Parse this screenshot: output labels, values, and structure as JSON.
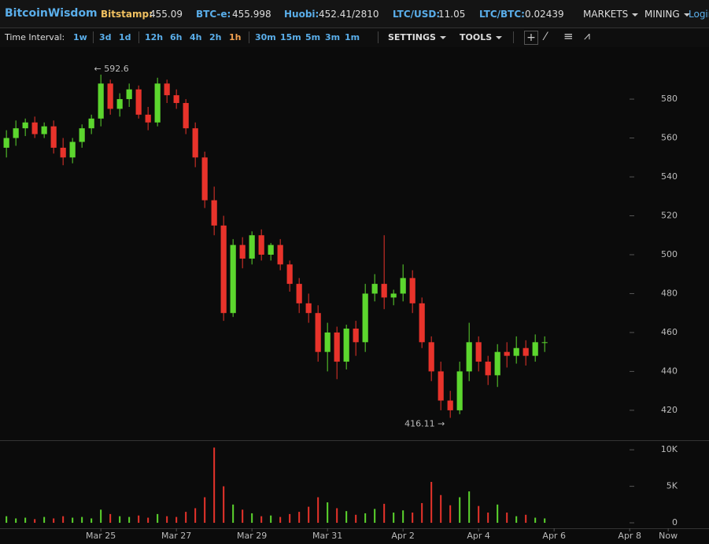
{
  "header": {
    "brand": "BitcoinWisdom",
    "tickers": [
      {
        "label": "Bitstamp:",
        "value": "455.09"
      },
      {
        "label": "BTC-e:",
        "value": "455.998"
      },
      {
        "label": "Huobi:",
        "value": "452.41/2810"
      },
      {
        "label": "LTC/USD:",
        "value": "11.05"
      },
      {
        "label": "LTC/BTC:",
        "value": "0.02439"
      }
    ],
    "menus": [
      "MARKETS",
      "MINING"
    ],
    "login": "Login"
  },
  "toolbar": {
    "label": "Time Interval:",
    "interval_groups": [
      [
        "1w"
      ],
      [
        "3d",
        "1d"
      ],
      [
        "12h",
        "6h",
        "4h",
        "2h",
        "1h"
      ],
      [
        "30m",
        "15m",
        "5m",
        "3m",
        "1m"
      ]
    ],
    "selected": [
      2,
      4
    ],
    "menus": [
      "SETTINGS",
      "TOOLS"
    ]
  },
  "chart_data": {
    "type": "candlestick",
    "up_color": "#5cd62e",
    "down_color": "#e8332b",
    "x": [
      22.5,
      22.75,
      23,
      23.25,
      23.5,
      23.75,
      24,
      24.25,
      24.5,
      24.75,
      25,
      25.25,
      25.5,
      25.75,
      26,
      26.25,
      26.5,
      26.75,
      27,
      27.25,
      27.5,
      27.75,
      28,
      28.25,
      28.5,
      28.75,
      29,
      29.25,
      29.5,
      29.75,
      30,
      30.25,
      30.5,
      30.75,
      31,
      31.25,
      31.5,
      31.75,
      32,
      32.25,
      32.5,
      32.75,
      33,
      33.25,
      33.5,
      33.75,
      34,
      34.25,
      34.5,
      34.75,
      35,
      35.25,
      35.5,
      35.75,
      36,
      36.25,
      36.5,
      36.75
    ],
    "open": [
      555,
      560,
      565,
      568,
      562,
      566,
      555,
      550,
      558,
      565,
      570,
      588,
      575,
      580,
      585,
      572,
      568,
      588,
      582,
      578,
      565,
      550,
      528,
      515,
      470,
      505,
      498,
      510,
      500,
      505,
      495,
      485,
      475,
      470,
      450,
      460,
      445,
      462,
      455,
      480,
      485,
      478,
      480,
      488,
      475,
      455,
      440,
      425,
      420,
      440,
      455,
      445,
      438,
      450,
      448,
      452,
      448,
      455
    ],
    "high": [
      564,
      569,
      570,
      571,
      568,
      569,
      560,
      560,
      567,
      572,
      592.6,
      590,
      583,
      588,
      587,
      576,
      591,
      590,
      585,
      580,
      568,
      553,
      535,
      520,
      508,
      509,
      512,
      513,
      506,
      508,
      497,
      488,
      480,
      474,
      465,
      463,
      464,
      466,
      485,
      490,
      510,
      482,
      495,
      492,
      478,
      458,
      445,
      430,
      445,
      465,
      458,
      448,
      454,
      455,
      458,
      456,
      459,
      458
    ],
    "low": [
      550,
      556,
      561,
      560,
      560,
      552,
      546,
      547,
      555,
      562,
      566,
      572,
      571,
      576,
      570,
      564,
      566,
      578,
      575,
      562,
      545,
      524,
      510,
      466,
      468,
      493,
      495,
      497,
      497,
      492,
      481,
      470,
      465,
      445,
      440,
      436,
      441,
      448,
      450,
      476,
      472,
      474,
      476,
      470,
      452,
      435,
      420,
      416.11,
      418,
      435,
      440,
      433,
      432,
      442,
      444,
      443,
      445,
      450
    ],
    "close": [
      560,
      565,
      568,
      562,
      566,
      555,
      550,
      558,
      565,
      570,
      588,
      575,
      580,
      585,
      572,
      568,
      588,
      582,
      578,
      565,
      550,
      528,
      515,
      470,
      505,
      498,
      510,
      500,
      505,
      495,
      485,
      475,
      470,
      450,
      460,
      445,
      462,
      455,
      480,
      485,
      478,
      480,
      488,
      475,
      455,
      440,
      425,
      420,
      440,
      455,
      445,
      438,
      450,
      448,
      452,
      448,
      455,
      455
    ],
    "volume": [
      900,
      600,
      700,
      500,
      800,
      600,
      900,
      700,
      800,
      600,
      1800,
      1200,
      900,
      800,
      1000,
      700,
      1200,
      900,
      800,
      1500,
      2000,
      3500,
      10300,
      5000,
      2500,
      1800,
      1300,
      900,
      1000,
      800,
      1200,
      1500,
      2200,
      3500,
      2800,
      2000,
      1600,
      1100,
      1300,
      1900,
      2600,
      1400,
      1700,
      1400,
      2700,
      5600,
      3800,
      2400,
      3500,
      4300,
      2300,
      1400,
      2500,
      1400,
      900,
      1100,
      700,
      600
    ],
    "ylim": [
      404.6,
      605.9
    ],
    "yticks": [
      420,
      440,
      460,
      480,
      500,
      520,
      540,
      560,
      580
    ],
    "volume_ylim": [
      -750,
      11200
    ],
    "volume_ticks": [
      {
        "value": 10000,
        "label": "10K"
      },
      {
        "value": 5000,
        "label": "5K"
      },
      0
    ],
    "xlim": [
      22.33,
      41.1
    ],
    "xticks": [
      {
        "value": 25,
        "label": "Mar 25"
      },
      {
        "value": 27,
        "label": "Mar 27"
      },
      {
        "value": 29,
        "label": "Mar 29"
      },
      {
        "value": 31,
        "label": "Mar 31"
      },
      {
        "value": 33,
        "label": "Apr 2"
      },
      {
        "value": 35,
        "label": "Apr 4"
      },
      {
        "value": 37,
        "label": "Apr 6"
      },
      {
        "value": 39,
        "label": "Apr 8"
      },
      {
        "value": 40.02,
        "label": "Now"
      }
    ],
    "annotations": [
      {
        "text": "← 592.6",
        "x": 24.82,
        "y": 592.6
      },
      {
        "text": "416.11 →",
        "x": 34.15,
        "y": 416.11
      }
    ]
  }
}
